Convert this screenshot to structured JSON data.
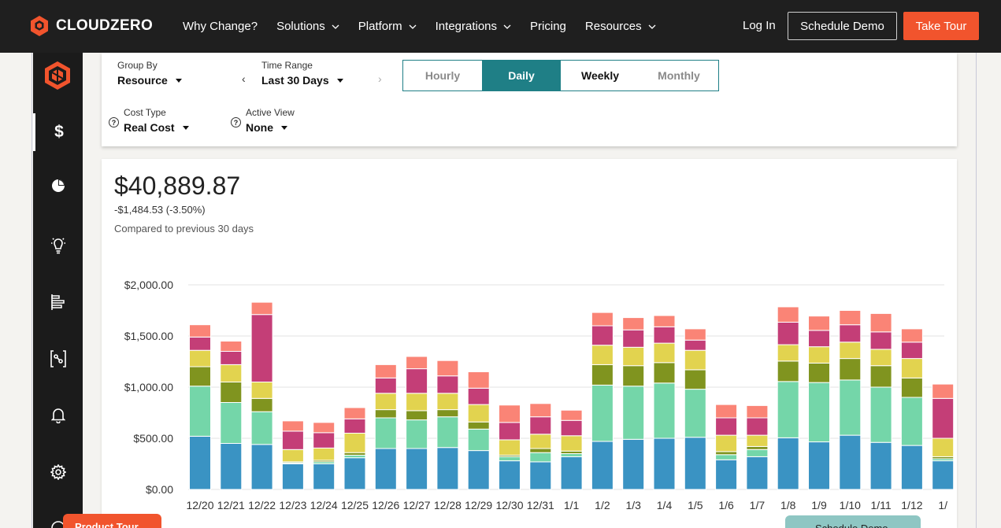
{
  "nav": {
    "brand": "CLOUDZERO",
    "items": [
      {
        "label": "Why Change?",
        "dropdown": false
      },
      {
        "label": "Solutions",
        "dropdown": true
      },
      {
        "label": "Platform",
        "dropdown": true
      },
      {
        "label": "Integrations",
        "dropdown": true
      },
      {
        "label": "Pricing",
        "dropdown": false
      },
      {
        "label": "Resources",
        "dropdown": true
      }
    ],
    "login": "Log In",
    "schedule_demo": "Schedule Demo",
    "take_tour": "Take Tour"
  },
  "sidebar": {
    "icons": [
      "dollar-icon",
      "pie-chart-icon",
      "lightbulb-icon",
      "list-bars-icon",
      "bracket-graph-icon",
      "bell-icon",
      "gear-icon"
    ],
    "active": "dollar-icon"
  },
  "controls": {
    "group_by_label": "Group By",
    "group_by_value": "Resource",
    "time_range_label": "Time Range",
    "time_range_value": "Last 30 Days",
    "cost_type_label": "Cost Type",
    "cost_type_value": "Real Cost",
    "active_view_label": "Active View",
    "active_view_value": "None",
    "granularity": [
      "Hourly",
      "Daily",
      "Weekly",
      "Monthly"
    ],
    "granularity_selected": "Daily"
  },
  "summary": {
    "total": "$40,889.87",
    "delta": "-$1,484.53 (-3.50%)",
    "compared": "Compared to previous 30 days"
  },
  "chart_data": {
    "type": "bar",
    "stacked": true,
    "ylim": [
      0,
      2000
    ],
    "yticks": [
      "$0.00",
      "$500.00",
      "$1,000.00",
      "$1,500.00",
      "$2,000.00"
    ],
    "categories": [
      "12/20",
      "12/21",
      "12/22",
      "12/23",
      "12/24",
      "12/25",
      "12/26",
      "12/27",
      "12/28",
      "12/29",
      "12/30",
      "12/31",
      "1/1",
      "1/2",
      "1/3",
      "1/4",
      "1/5",
      "1/6",
      "1/7",
      "1/8",
      "1/9",
      "1/10",
      "1/11",
      "1/12",
      "1/"
    ],
    "series": [
      {
        "color": "#3a93c3",
        "values": [
          520,
          450,
          440,
          250,
          250,
          310,
          400,
          400,
          410,
          380,
          280,
          270,
          320,
          470,
          490,
          500,
          510,
          290,
          320,
          505,
          465,
          530,
          460,
          430,
          280
        ]
      },
      {
        "color": "#74d6a9",
        "values": [
          490,
          400,
          320,
          10,
          20,
          25,
          300,
          280,
          300,
          210,
          40,
          90,
          30,
          550,
          520,
          540,
          470,
          50,
          70,
          550,
          580,
          540,
          540,
          470,
          20
        ]
      },
      {
        "color": "#80941f",
        "values": [
          190,
          200,
          130,
          10,
          15,
          25,
          80,
          90,
          70,
          70,
          15,
          40,
          25,
          200,
          200,
          200,
          190,
          30,
          30,
          200,
          190,
          210,
          210,
          190,
          20
        ]
      },
      {
        "color": "#e2d34f",
        "values": [
          160,
          170,
          160,
          120,
          120,
          190,
          160,
          170,
          160,
          170,
          150,
          140,
          150,
          190,
          180,
          190,
          190,
          160,
          110,
          160,
          160,
          160,
          160,
          190,
          180
        ]
      },
      {
        "color": "#c43e77",
        "values": [
          130,
          130,
          660,
          180,
          150,
          140,
          150,
          240,
          170,
          160,
          170,
          170,
          150,
          190,
          170,
          160,
          100,
          170,
          170,
          220,
          160,
          170,
          170,
          160,
          390
        ]
      },
      {
        "color": "#fa8476",
        "values": [
          120,
          100,
          120,
          100,
          100,
          110,
          130,
          120,
          150,
          160,
          170,
          130,
          100,
          130,
          120,
          110,
          110,
          130,
          120,
          150,
          140,
          140,
          180,
          130,
          140
        ]
      }
    ]
  },
  "floating": {
    "product_tour": "Product Tour",
    "schedule_demo": "Schedule Demo"
  }
}
